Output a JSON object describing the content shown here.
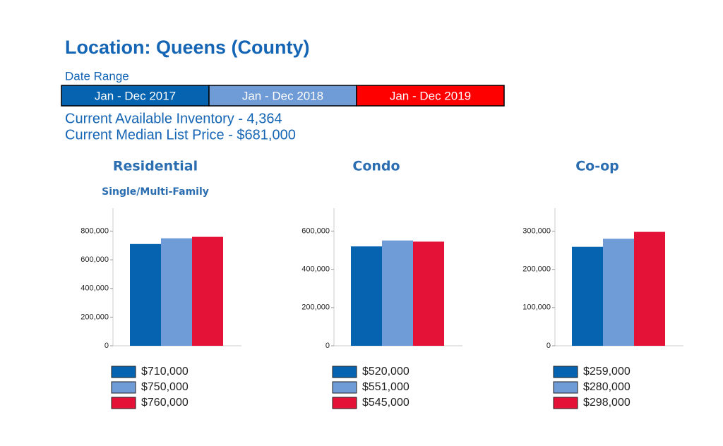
{
  "header": {
    "title": "Location: Queens (County)",
    "date_range_label": "Date Range",
    "date_ranges": [
      {
        "label": "Jan - Dec 2017",
        "color": "#0563b0"
      },
      {
        "label": "Jan - Dec 2018",
        "color": "#6f9bd6"
      },
      {
        "label": "Jan - Dec 2019",
        "color": "#ff0000"
      }
    ],
    "inventory": "Current Available Inventory - 4,364",
    "median_price": "Current Median List Price - $681,000"
  },
  "chart_data": [
    {
      "type": "bar",
      "title": "Residential",
      "subtitle": "Single/Multi-Family",
      "values": [
        710000,
        750000,
        760000
      ],
      "value_labels": [
        "$710,000",
        "$750,000",
        "$760,000"
      ],
      "colors": [
        "#0563b0",
        "#6f9bd6",
        "#e31236"
      ],
      "ylim": [
        0,
        960000
      ],
      "yticks": [
        0,
        {
          "value": 200000,
          "label": "200,000"
        },
        {
          "value": 400000,
          "label": "400,000"
        },
        {
          "value": 600000,
          "label": "600,000"
        },
        {
          "value": 800000,
          "label": "800,000"
        }
      ]
    },
    {
      "type": "bar",
      "title": "Condo",
      "values": [
        520000,
        551000,
        545000
      ],
      "value_labels": [
        "$520,000",
        "$551,000",
        "$545,000"
      ],
      "colors": [
        "#0563b0",
        "#6f9bd6",
        "#e31236"
      ],
      "ylim": [
        0,
        720000
      ],
      "yticks": [
        0,
        {
          "value": 200000,
          "label": "200,000"
        },
        {
          "value": 400000,
          "label": "400,000"
        },
        {
          "value": 600000,
          "label": "600,000"
        }
      ]
    },
    {
      "type": "bar",
      "title": "Co-op",
      "values": [
        259000,
        280000,
        298000
      ],
      "value_labels": [
        "$259,000",
        "$280,000",
        "$298,000"
      ],
      "colors": [
        "#0563b0",
        "#6f9bd6",
        "#e31236"
      ],
      "ylim": [
        0,
        360000
      ],
      "yticks": [
        0,
        {
          "value": 100000,
          "label": "100,000"
        },
        {
          "value": 200000,
          "label": "200,000"
        },
        {
          "value": 300000,
          "label": "300,000"
        }
      ]
    }
  ]
}
